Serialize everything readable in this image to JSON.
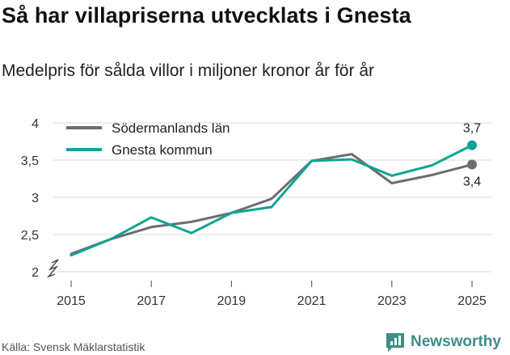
{
  "header": {
    "title": "Så har villapriserna utvecklats i Gnesta",
    "subtitle": "Medelpris för sålda villor i miljoner kronor år för år"
  },
  "footer": {
    "source": "Källa: Svensk Mäklarstatistik",
    "brand": "Newsworthy"
  },
  "colors": {
    "lan": "#6f6b70",
    "kommun": "#11a396",
    "grid": "#d9d9d9",
    "brand": "#3e8e86"
  },
  "chart_data": {
    "type": "line",
    "title": "Så har villapriserna utvecklats i Gnesta",
    "subtitle": "Medelpris för sålda villor i miljoner kronor år för år",
    "xlabel": "",
    "ylabel": "",
    "x": [
      2015,
      2016,
      2017,
      2018,
      2019,
      2020,
      2021,
      2022,
      2023,
      2024,
      2025
    ],
    "x_ticks": [
      "2015",
      "2017",
      "2019",
      "2021",
      "2023",
      "2025"
    ],
    "y_ticks": [
      "2",
      "2,5",
      "3",
      "3,5",
      "4"
    ],
    "ylim": [
      2,
      4
    ],
    "grid": true,
    "axis_break": true,
    "legend_position": "top-left",
    "series": [
      {
        "name": "Södermanlands län",
        "values": [
          2.24,
          2.44,
          2.6,
          2.67,
          2.79,
          2.98,
          3.49,
          3.58,
          3.19,
          3.3,
          3.44
        ],
        "end_label": "3,4"
      },
      {
        "name": "Gnesta kommun",
        "values": [
          2.22,
          2.44,
          2.73,
          2.52,
          2.79,
          2.87,
          3.49,
          3.51,
          3.29,
          3.43,
          3.7
        ],
        "end_label": "3,7"
      }
    ]
  }
}
